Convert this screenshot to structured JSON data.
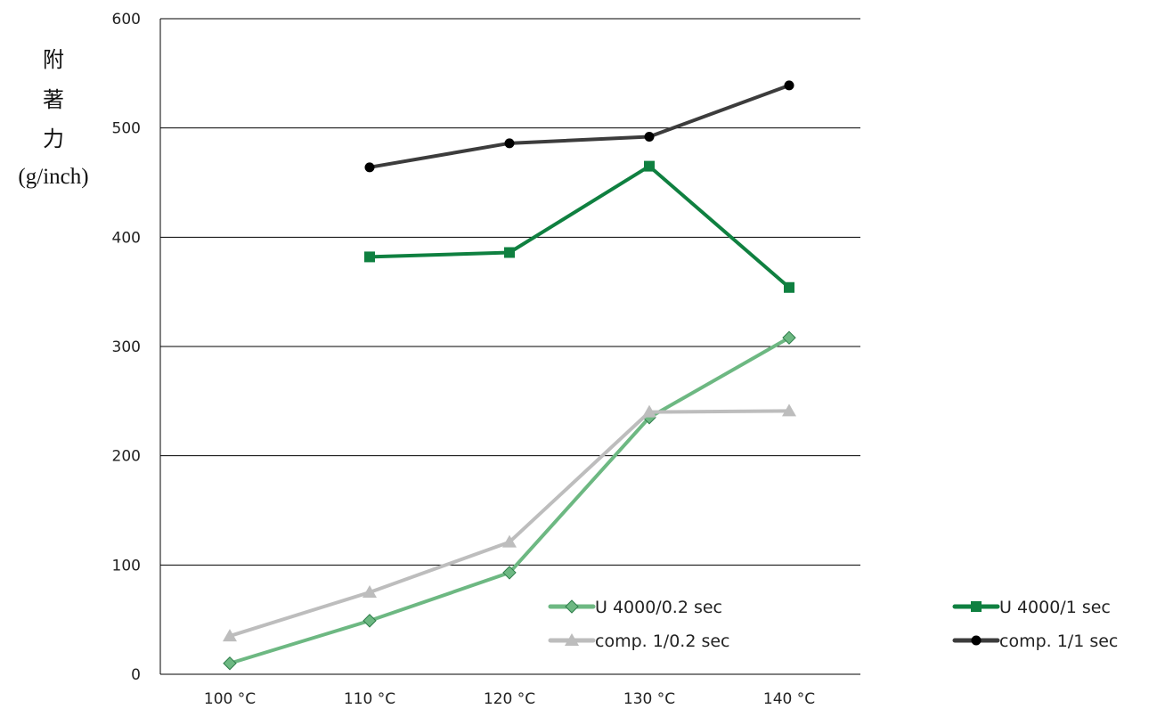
{
  "chart_data": {
    "type": "line",
    "title": "",
    "xlabel": "",
    "ylabel": [
      "附",
      "著",
      "力",
      "(g/inch)"
    ],
    "categories": [
      "100 °C",
      "110 °C",
      "120 °C",
      "130 °C",
      "140 °C"
    ],
    "ylim": [
      0,
      600
    ],
    "yticks": [
      0,
      100,
      200,
      300,
      400,
      500,
      600
    ],
    "grid": true,
    "legend_position": "bottom-right",
    "series": [
      {
        "name": "U 4000/0.2 sec",
        "marker": "diamond",
        "color": "#6db882",
        "values": [
          10,
          49,
          93,
          235,
          308
        ]
      },
      {
        "name": "U 4000/1 sec",
        "marker": "square",
        "color": "#0f8040",
        "values": [
          null,
          382,
          386,
          465,
          354
        ]
      },
      {
        "name": "comp. 1/0.2 sec",
        "marker": "triangle",
        "color": "#bdbdbd",
        "values": [
          35,
          75,
          121,
          240,
          241
        ]
      },
      {
        "name": "comp. 1/1 sec",
        "marker": "circle",
        "color": "#3c3c3c",
        "values": [
          null,
          464,
          486,
          492,
          539
        ]
      }
    ]
  }
}
